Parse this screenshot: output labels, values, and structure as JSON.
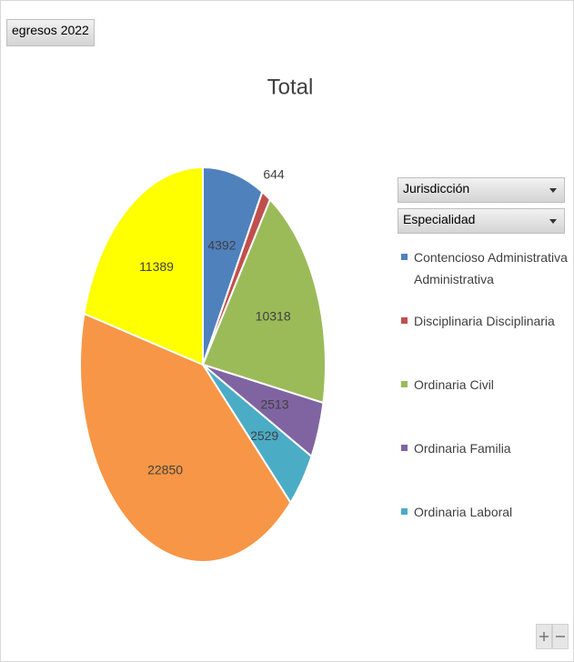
{
  "field_button": "egresos 2022",
  "filters": [
    "Jurisdicción",
    "Especialidad"
  ],
  "chart_data": {
    "type": "pie",
    "title": "Total",
    "categories": [
      "Contencioso Administrativa Administrativa",
      "Disciplinaria Disciplinaria",
      "Ordinaria Civil",
      "Ordinaria Familia",
      "Ordinaria Laboral",
      null,
      null
    ],
    "values": [
      4392,
      644,
      10318,
      2513,
      2529,
      22850,
      11389
    ],
    "colors": [
      "#4f81bd",
      "#c0504d",
      "#9bbb59",
      "#8064a2",
      "#4bacc6",
      "#f79646",
      "#ffff00"
    ],
    "legend": "right"
  }
}
